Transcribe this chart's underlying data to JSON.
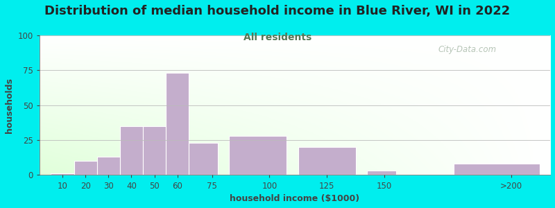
{
  "title": "Distribution of median household income in Blue River, WI in 2022",
  "subtitle": "All residents",
  "xlabel": "household income ($1000)",
  "ylabel": "households",
  "background_color": "#00EEEE",
  "bar_color": "#C4AECC",
  "title_color": "#222222",
  "subtitle_color": "#557755",
  "xlabel_color": "#444444",
  "ylabel_color": "#444444",
  "tick_color": "#444444",
  "watermark": "City-Data.com",
  "watermark_color": "#AABBAA",
  "categories": [
    "10",
    "20",
    "30",
    "40",
    "50",
    "60",
    "75",
    "100",
    "125",
    "150",
    ">200"
  ],
  "values": [
    1,
    10,
    13,
    35,
    35,
    73,
    23,
    28,
    20,
    3,
    8
  ],
  "bar_lefts": [
    5,
    15,
    25,
    35,
    45,
    55,
    65,
    82.5,
    112.5,
    142.5,
    180
  ],
  "bar_widths": [
    10,
    10,
    10,
    10,
    10,
    10,
    12.5,
    25,
    25,
    12.5,
    37.5
  ],
  "xlim": [
    0,
    222
  ],
  "ylim": [
    0,
    100
  ],
  "yticks": [
    0,
    25,
    50,
    75,
    100
  ],
  "xtick_positions": [
    10,
    20,
    30,
    40,
    50,
    60,
    75,
    100,
    125,
    150,
    205
  ],
  "xtick_labels": [
    "10",
    "20",
    "30",
    "40",
    "50",
    "60",
    "75",
    "100",
    "125",
    "150",
    ">200"
  ],
  "title_fontsize": 13,
  "subtitle_fontsize": 10,
  "axis_label_fontsize": 9,
  "tick_fontsize": 8.5
}
